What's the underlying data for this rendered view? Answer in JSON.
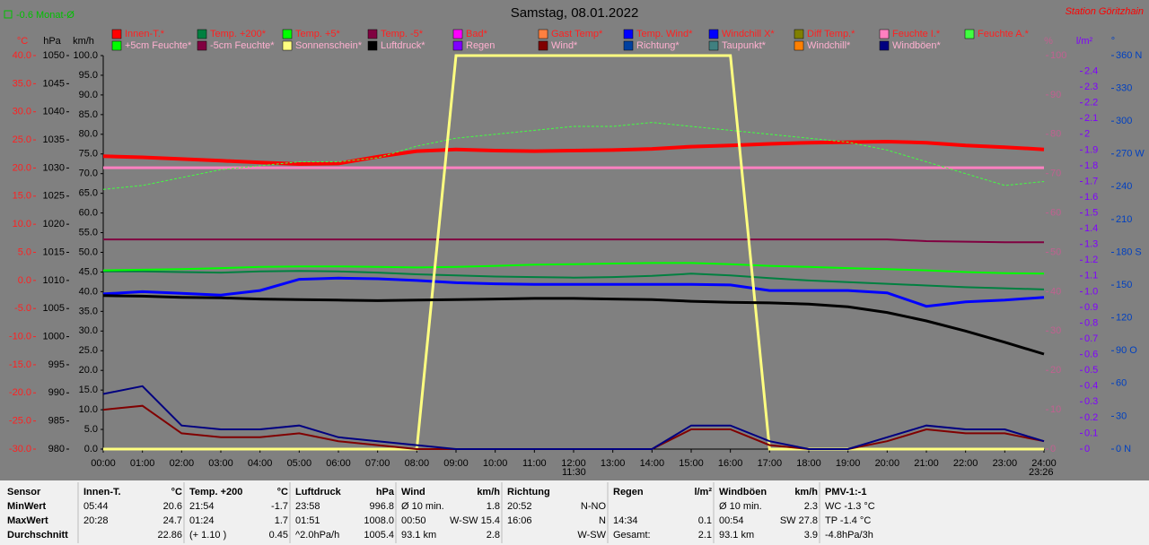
{
  "chart_data": {
    "type": "line",
    "title": "Samstag, 08.01.2022",
    "month_note": "-0.6 Monat-Ø",
    "station": "Station Göritzhain",
    "markers": [
      "11:30",
      "23:26"
    ],
    "x": [
      0,
      1,
      2,
      3,
      4,
      5,
      6,
      7,
      8,
      9,
      10,
      11,
      12,
      13,
      14,
      15,
      16,
      17,
      18,
      19,
      20,
      21,
      22,
      23,
      24
    ],
    "xlim": [
      0,
      24
    ],
    "xticks": [
      {
        "value": 0,
        "label": "00:00"
      },
      {
        "value": 1,
        "label": "01:00"
      },
      {
        "value": 2,
        "label": "02:00"
      },
      {
        "value": 3,
        "label": "03:00"
      },
      {
        "value": 4,
        "label": "04:00"
      },
      {
        "value": 5,
        "label": "05:00"
      },
      {
        "value": 6,
        "label": "06:00"
      },
      {
        "value": 7,
        "label": "07:00"
      },
      {
        "value": 8,
        "label": "08:00"
      },
      {
        "value": 9,
        "label": "09:00"
      },
      {
        "value": 10,
        "label": "10:00"
      },
      {
        "value": 11,
        "label": "11:00"
      },
      {
        "value": 12,
        "label": "12:00"
      },
      {
        "value": 13,
        "label": "13:00"
      },
      {
        "value": 14,
        "label": "14:00"
      },
      {
        "value": 15,
        "label": "15:00"
      },
      {
        "value": 16,
        "label": "16:00"
      },
      {
        "value": 17,
        "label": "17:00"
      },
      {
        "value": 18,
        "label": "18:00"
      },
      {
        "value": 19,
        "label": "19:00"
      },
      {
        "value": 20,
        "label": "20:00"
      },
      {
        "value": 21,
        "label": "21:00"
      },
      {
        "value": 22,
        "label": "22:00"
      },
      {
        "value": 23,
        "label": "23:00"
      },
      {
        "value": 24,
        "label": "24:00"
      }
    ],
    "axes": [
      {
        "label": "°C",
        "color": "#ff2020",
        "ylim": [
          -30,
          40
        ],
        "yticks": [
          {
            "value": 40,
            "label": "40.0"
          },
          {
            "value": 35,
            "label": "35.0"
          },
          {
            "value": 30,
            "label": "30.0"
          },
          {
            "value": 25,
            "label": "25.0"
          },
          {
            "value": 20,
            "label": "20.0"
          },
          {
            "value": 15,
            "label": "15.0"
          },
          {
            "value": 10,
            "label": "10.0"
          },
          {
            "value": 5,
            "label": "5.0"
          },
          {
            "value": 0,
            "label": "0.0"
          },
          {
            "value": -5,
            "label": "-5.0"
          },
          {
            "value": -10,
            "label": "-10.0"
          },
          {
            "value": -15,
            "label": "-15.0"
          },
          {
            "value": -20,
            "label": "-20.0"
          },
          {
            "value": -25,
            "label": "-25.0"
          },
          {
            "value": -30,
            "label": "-30.0"
          }
        ]
      },
      {
        "label": "hPa",
        "color": "#000000",
        "ylim": [
          980,
          1050
        ],
        "yticks": [
          1050,
          1045,
          1040,
          1035,
          1030,
          1025,
          1020,
          1015,
          1010,
          1005,
          1000,
          995,
          990,
          985,
          980
        ]
      },
      {
        "label": "km/h",
        "color": "#000000",
        "ylim": [
          0,
          100
        ],
        "yticks": [
          {
            "value": 100,
            "label": "100.0"
          },
          {
            "value": 95,
            "label": "95.0"
          },
          {
            "value": 90,
            "label": "90.0"
          },
          {
            "value": 85,
            "label": "85.0"
          },
          {
            "value": 80,
            "label": "80.0"
          },
          {
            "value": 75,
            "label": "75.0"
          },
          {
            "value": 70,
            "label": "70.0"
          },
          {
            "value": 65,
            "label": "65.0"
          },
          {
            "value": 60,
            "label": "60.0"
          },
          {
            "value": 55,
            "label": "55.0"
          },
          {
            "value": 50,
            "label": "50.0"
          },
          {
            "value": 45,
            "label": "45.0"
          },
          {
            "value": 40,
            "label": "40.0"
          },
          {
            "value": 35,
            "label": "35.0"
          },
          {
            "value": 30,
            "label": "30.0"
          },
          {
            "value": 25,
            "label": "25.0"
          },
          {
            "value": 20,
            "label": "20.0"
          },
          {
            "value": 15,
            "label": "15.0"
          },
          {
            "value": 10,
            "label": "10.0"
          },
          {
            "value": 5,
            "label": "5.0"
          },
          {
            "value": 0,
            "label": "0.0"
          }
        ]
      },
      {
        "label": "%",
        "color": "#c06090",
        "ylim": [
          0,
          100
        ],
        "yticks": [
          100,
          90,
          80,
          70,
          60,
          50,
          40,
          30,
          20,
          10,
          0
        ]
      },
      {
        "label": "l/m²",
        "color": "#8000ff",
        "ylim": [
          0,
          2.5
        ],
        "yticks": [
          2.4,
          2.3,
          2.2,
          2.1,
          2.0,
          1.9,
          1.8,
          1.7,
          1.6,
          1.5,
          1.4,
          1.3,
          1.2,
          1.1,
          {
            "value": 1,
            "label": "1.0"
          },
          0.9,
          0.8,
          0.7,
          0.6,
          0.5,
          0.4,
          0.3,
          0.2,
          0.1,
          0
        ]
      },
      {
        "label": "°",
        "color": "#0040c0",
        "ylim": [
          0,
          360
        ],
        "yticks": [
          {
            "value": 360,
            "label": "360 N"
          },
          330,
          300,
          {
            "value": 270,
            "label": "270 W"
          },
          240,
          210,
          {
            "value": 180,
            "label": "180 S"
          },
          150,
          120,
          {
            "value": 90,
            "label": "90 O"
          },
          60,
          30,
          {
            "value": 0,
            "label": "0 N"
          }
        ]
      }
    ],
    "series": [
      {
        "name": "Innen-T.*",
        "color": "#ff0000",
        "axis": 0,
        "width": 4,
        "values": [
          22.1,
          21.9,
          21.6,
          21.3,
          21.0,
          20.7,
          20.8,
          22.0,
          23.0,
          23.3,
          23.1,
          23.0,
          23.1,
          23.2,
          23.4,
          23.8,
          24.0,
          24.3,
          24.5,
          24.6,
          24.7,
          24.5,
          24.0,
          23.7,
          23.3
        ]
      },
      {
        "name": "Temp. +200*",
        "color": "#008040",
        "axis": 0,
        "width": 2,
        "values": [
          1.6,
          1.6,
          1.5,
          1.4,
          1.6,
          1.7,
          1.6,
          1.4,
          1.1,
          0.9,
          0.7,
          0.6,
          0.5,
          0.6,
          0.8,
          1.2,
          0.9,
          0.4,
          0.0,
          -0.3,
          -0.6,
          -0.9,
          -1.2,
          -1.4,
          -1.6
        ]
      },
      {
        "name": "Temp. +5*",
        "color": "#00ff00",
        "axis": 0,
        "width": 2,
        "values": [
          1.8,
          1.9,
          2.0,
          2.2,
          2.4,
          2.5,
          2.5,
          2.4,
          2.3,
          2.4,
          2.6,
          2.8,
          2.9,
          3.0,
          3.1,
          3.1,
          2.9,
          2.6,
          2.4,
          2.2,
          2.0,
          1.8,
          1.5,
          1.3,
          1.2
        ]
      },
      {
        "name": "Temp. -5*",
        "color": "#800040",
        "axis": 0,
        "width": 2,
        "values": [
          7.3,
          7.3,
          7.3,
          7.3,
          7.3,
          7.3,
          7.3,
          7.3,
          7.3,
          7.3,
          7.3,
          7.3,
          7.3,
          7.3,
          7.3,
          7.3,
          7.3,
          7.3,
          7.3,
          7.3,
          7.3,
          7.0,
          6.9,
          6.8,
          6.8
        ]
      },
      {
        "name": "Bad*",
        "color": "#ff00ff"
      },
      {
        "name": "Gast Temp*",
        "color": "#ff8040"
      },
      {
        "name": "Temp. Wind*",
        "color": "#0000ff",
        "axis": 0,
        "width": 3,
        "values": [
          -2.4,
          -2.0,
          -2.3,
          -2.6,
          -1.8,
          0.2,
          0.4,
          0.3,
          0.0,
          -0.4,
          -0.6,
          -0.7,
          -0.7,
          -0.7,
          -0.7,
          -0.7,
          -0.8,
          -1.8,
          -1.8,
          -1.8,
          -2.2,
          -4.6,
          -3.8,
          -3.5,
          -3.0
        ]
      },
      {
        "name": "Windchill X*",
        "color": "#0000ff"
      },
      {
        "name": "Diff Temp.*",
        "color": "#808000"
      },
      {
        "name": "Feuchte I.*",
        "color": "#ff80c0",
        "axis": 3,
        "width": 3,
        "values": [
          71.5,
          71.5,
          71.5,
          71.5,
          71.5,
          71.5,
          71.5,
          71.5,
          71.5,
          71.5,
          71.5,
          71.5,
          71.5,
          71.5,
          71.5,
          71.5,
          71.5,
          71.5,
          71.5,
          71.5,
          71.5,
          71.5,
          71.5,
          71.5,
          71.5
        ]
      },
      {
        "name": "Feuchte A.*",
        "color": "#40ff40",
        "axis": 3,
        "width": 1,
        "dash": true,
        "values": [
          66,
          67,
          69,
          71,
          72,
          73,
          73,
          74,
          77,
          79,
          80,
          81,
          82,
          82,
          83,
          82,
          81,
          80,
          79,
          78,
          76,
          73,
          70,
          67,
          68
        ]
      },
      {
        "name": "+5cm Feuchte*",
        "color": "#00ff00"
      },
      {
        "name": "-5cm Feuchte*",
        "color": "#800040"
      },
      {
        "name": "Sonnenschein*",
        "color": "#ffff80",
        "axis": 3,
        "width": 3,
        "values": [
          0,
          0,
          0,
          0,
          0,
          0,
          0,
          0,
          0,
          100,
          100,
          100,
          100,
          100,
          100,
          100,
          100,
          0,
          0,
          0,
          0,
          0,
          0,
          0,
          0
        ]
      },
      {
        "name": "Luftdruck*",
        "color": "#000000",
        "axis": 1,
        "width": 3,
        "values": [
          1007.3,
          1007.2,
          1007.0,
          1006.9,
          1006.7,
          1006.6,
          1006.5,
          1006.4,
          1006.5,
          1006.6,
          1006.7,
          1006.8,
          1006.8,
          1006.7,
          1006.6,
          1006.3,
          1006.1,
          1006.0,
          1005.8,
          1005.3,
          1004.3,
          1002.8,
          1001.0,
          999.0,
          996.9
        ]
      },
      {
        "name": "Regen",
        "color": "#8000ff"
      },
      {
        "name": "Wind*",
        "color": "#800000",
        "axis": 2,
        "width": 2,
        "values": [
          10,
          11,
          4,
          3,
          3,
          4,
          2,
          1,
          0,
          0,
          0,
          0,
          0,
          0,
          0,
          5,
          5,
          1,
          0,
          0,
          2,
          5,
          4,
          4,
          2
        ]
      },
      {
        "name": "Richtung*",
        "color": "#0040a0"
      },
      {
        "name": "Taupunkt*",
        "color": "#408080"
      },
      {
        "name": "Windchill*",
        "color": "#ff8000"
      },
      {
        "name": "Windböen*",
        "color": "#000080",
        "axis": 2,
        "width": 2,
        "values": [
          14,
          16,
          6,
          5,
          5,
          6,
          3,
          2,
          1,
          0,
          0,
          0,
          0,
          0,
          0,
          6,
          6,
          2,
          0,
          0,
          3,
          6,
          5,
          5,
          2
        ]
      }
    ]
  },
  "table": {
    "row_labels": [
      "Sensor",
      "MinWert",
      "MaxWert",
      "Durchschnitt"
    ],
    "columns": [
      {
        "header": "Innen-T.",
        "unit": "°C",
        "rows": [
          [
            "05:44",
            "20.6"
          ],
          [
            "20:28",
            "24.7"
          ],
          [
            null,
            "22.86"
          ]
        ]
      },
      {
        "header": "Temp. +200",
        "unit": "°C",
        "rows": [
          [
            "21:54",
            "-1.7"
          ],
          [
            "01:24",
            "1.7"
          ],
          [
            "(+ 1.10 )",
            "0.45"
          ]
        ]
      },
      {
        "header": "Luftdruck",
        "unit": "hPa",
        "rows": [
          [
            "23:58",
            "996.8"
          ],
          [
            "01:51",
            "1008.0"
          ],
          [
            "^2.0hPa/h",
            "1005.4"
          ]
        ]
      },
      {
        "header": "Wind",
        "unit": "km/h",
        "rows": [
          [
            "Ø 10 min.",
            "1.8"
          ],
          [
            "00:50",
            "W-SW 15.4"
          ],
          [
            "93.1 km",
            "2.8"
          ]
        ]
      },
      {
        "header": "Richtung",
        "rows": [
          [
            "20:52",
            "N-NO"
          ],
          [
            "16:06",
            "N"
          ],
          [
            null,
            "W-SW"
          ]
        ]
      },
      {
        "header": "Regen",
        "unit": "l/m²",
        "rows": [
          [
            null,
            null
          ],
          [
            "14:34",
            "0.1"
          ],
          [
            "Gesamt:",
            "2.1"
          ]
        ]
      },
      {
        "header": "Windböen",
        "unit": "km/h",
        "rows": [
          [
            "Ø 10 min.",
            "2.3"
          ],
          [
            "00:54",
            "SW 27.8"
          ],
          [
            "93.1 km",
            "3.9"
          ]
        ]
      },
      {
        "header": "PMV-1:-1",
        "rows": [
          [
            "WC -1.3 °C",
            null
          ],
          [
            "TP -1.4 °C",
            null
          ],
          [
            "-4.8hPa/3h",
            null
          ]
        ]
      }
    ]
  }
}
